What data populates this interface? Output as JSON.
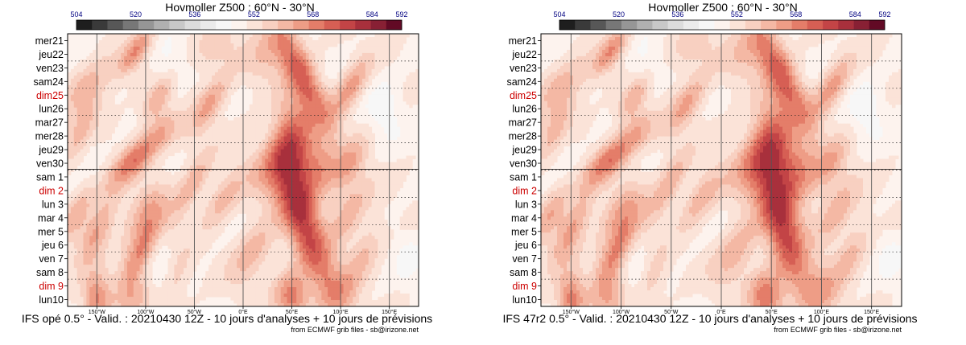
{
  "colors": {
    "scale": [
      "#1e1e1e",
      "#3a3a3a",
      "#575757",
      "#777777",
      "#969696",
      "#b0b0b0",
      "#c8c8c8",
      "#dcdcdc",
      "#ebebeb",
      "#f7f7f7",
      "#fdf3ee",
      "#fbe3d8",
      "#f8d0c1",
      "#f4b8a4",
      "#ee9d86",
      "#e47d69",
      "#d65f54",
      "#c34446",
      "#a8303c",
      "#882034",
      "#620a25"
    ],
    "title": "#000080",
    "tick": "#000080",
    "weekend": "#cc0000",
    "label": "#000000"
  },
  "panels": [
    {
      "chart_data": {
        "type": "heatmap",
        "title": "Hovmoller Z500 : 60°N - 30°N",
        "colorbar_ticks": [
          "504",
          "520",
          "536",
          "552",
          "568",
          "584",
          "592"
        ],
        "colorbar_range": [
          504,
          592
        ],
        "rows": [
          "mer21",
          "jeu22",
          "ven23",
          "sam24",
          "dim25",
          "lun26",
          "mar27",
          "mer28",
          "jeu29",
          "ven30",
          "sam 1",
          "dim 2",
          "lun 3",
          "mar 4",
          "mer 5",
          "jeu 6",
          "ven 7",
          "sam 8",
          "dim 9",
          "lun10"
        ],
        "weekend_rows": [
          4,
          11,
          18
        ],
        "x_ticks": [
          "150°W",
          "100°W",
          "50°W",
          "0°E",
          "50°E",
          "100°E",
          "150°E"
        ],
        "x_tick_values": [
          -150,
          -100,
          -50,
          0,
          50,
          100,
          150
        ],
        "x_range": [
          -180,
          180
        ],
        "forecast_start_row": 10,
        "caption": "IFS opé 0.5° - Valid. : 20210430 12Z - 10 jours d'analyses + 10 jours de prévisions",
        "source": "from ECMWF grib files - sb@irizone.net",
        "blobs": [
          {
            "lon": -110,
            "day": 0.8,
            "amp": 4.2,
            "slon": 9,
            "sday": 1.3,
            "drift": -8
          },
          {
            "lon": -30,
            "day": 0.5,
            "amp": 2.2,
            "slon": 14,
            "sday": 1.2,
            "drift": -6
          },
          {
            "lon": 25,
            "day": 1.0,
            "amp": 2.2,
            "slon": 16,
            "sday": 1.5,
            "drift": -5
          },
          {
            "lon": 60,
            "day": 2.5,
            "amp": 5.3,
            "slon": 12,
            "sday": 2.8,
            "drift": 6
          },
          {
            "lon": 110,
            "day": 3.5,
            "amp": 3.6,
            "slon": 10,
            "sday": 1.6,
            "drift": -6
          },
          {
            "lon": -160,
            "day": 3.5,
            "amp": 2.6,
            "slon": 14,
            "sday": 1.5,
            "drift": -6
          },
          {
            "lon": -85,
            "day": 4.0,
            "amp": 3.2,
            "slon": 9,
            "sday": 1.3,
            "drift": -7
          },
          {
            "lon": -35,
            "day": 4.8,
            "amp": 3.4,
            "slon": 10,
            "sday": 1.6,
            "drift": -7
          },
          {
            "lon": 50,
            "day": 6.5,
            "amp": 3.6,
            "slon": 14,
            "sday": 2.0,
            "drift": 0
          },
          {
            "lon": -110,
            "day": 8.6,
            "amp": 4.6,
            "slon": 13,
            "sday": 1.5,
            "drift": -10
          },
          {
            "lon": -165,
            "day": 6.5,
            "amp": 3.2,
            "slon": 10,
            "sday": 1.5,
            "drift": -5
          },
          {
            "lon": -80,
            "day": 6.5,
            "amp": 1.6,
            "slon": 12,
            "sday": 1.2,
            "drift": 0
          },
          {
            "lon": 40,
            "day": 9.0,
            "amp": 4.2,
            "slon": 20,
            "sday": 1.8,
            "drift": -4
          },
          {
            "lon": 80,
            "day": 9.5,
            "amp": 3.2,
            "slon": 14,
            "sday": 1.5,
            "drift": 0
          },
          {
            "lon": 110,
            "day": 9.0,
            "amp": 2.6,
            "slon": 10,
            "sday": 1.4,
            "drift": -5
          },
          {
            "lon": -55,
            "day": 11.0,
            "amp": 3.6,
            "slon": 10,
            "sday": 1.8,
            "drift": -6
          },
          {
            "lon": -20,
            "day": 11.5,
            "amp": 2.6,
            "slon": 11,
            "sday": 1.5,
            "drift": -6
          },
          {
            "lon": 55,
            "day": 11.5,
            "amp": 4.2,
            "slon": 14,
            "sday": 2.2,
            "drift": 2
          },
          {
            "lon": 110,
            "day": 12.5,
            "amp": 2.6,
            "slon": 12,
            "sday": 1.8,
            "drift": -5
          },
          {
            "lon": -100,
            "day": 12.5,
            "amp": 2.6,
            "slon": 14,
            "sday": 1.6,
            "drift": -5
          },
          {
            "lon": -150,
            "day": 14.0,
            "amp": 3.6,
            "slon": 10,
            "sday": 1.8,
            "drift": -6
          },
          {
            "lon": -105,
            "day": 15.5,
            "amp": 4.6,
            "slon": 10,
            "sday": 1.8,
            "drift": -6
          },
          {
            "lon": 70,
            "day": 15.0,
            "amp": 4.8,
            "slon": 13,
            "sday": 3.0,
            "drift": 4
          },
          {
            "lon": 10,
            "day": 15.5,
            "amp": 2.6,
            "slon": 14,
            "sday": 1.8,
            "drift": -5
          },
          {
            "lon": 125,
            "day": 15.5,
            "amp": 2.2,
            "slon": 10,
            "sday": 1.6,
            "drift": -5
          },
          {
            "lon": -170,
            "day": 12.5,
            "amp": 2.6,
            "slon": 9,
            "sday": 1.5,
            "drift": -5
          },
          {
            "lon": -70,
            "day": 17.5,
            "amp": 2.2,
            "slon": 10,
            "sday": 1.5,
            "drift": -5
          },
          {
            "lon": 50,
            "day": 18.8,
            "amp": 4.8,
            "slon": 12,
            "sday": 1.3,
            "drift": 0
          },
          {
            "lon": -150,
            "day": 19.0,
            "amp": 4.6,
            "slon": 10,
            "sday": 1.3,
            "drift": 0
          },
          {
            "lon": 100,
            "day": 18.5,
            "amp": 2.6,
            "slon": 14,
            "sday": 1.5,
            "drift": 0
          },
          {
            "lon": -110,
            "day": 19.0,
            "amp": 2.2,
            "slon": 12,
            "sday": 1.2,
            "drift": 0
          }
        ],
        "dips": [
          {
            "lon": -75,
            "day": 2.0,
            "amp": 1.5,
            "slon": 12,
            "sday": 1.5
          },
          {
            "lon": 145,
            "day": 5.0,
            "amp": 1.5,
            "slon": 12,
            "sday": 1.5
          },
          {
            "lon": -160,
            "day": 7.0,
            "amp": 1.2,
            "slon": 10,
            "sday": 1.5
          },
          {
            "lon": -60,
            "day": 11.5,
            "amp": 1.0,
            "slon": 12,
            "sday": 1.5
          },
          {
            "lon": -85,
            "day": 17.0,
            "amp": 1.2,
            "slon": 12,
            "sday": 1.5
          },
          {
            "lon": 170,
            "day": 16.0,
            "amp": 1.0,
            "slon": 10,
            "sday": 1.5
          }
        ]
      }
    },
    {
      "chart_data": {
        "type": "heatmap",
        "title": "Hovmoller Z500 : 60°N - 30°N",
        "colorbar_ticks": [
          "504",
          "520",
          "536",
          "552",
          "568",
          "584",
          "592"
        ],
        "colorbar_range": [
          504,
          592
        ],
        "rows": [
          "mer21",
          "jeu22",
          "ven23",
          "sam24",
          "dim25",
          "lun26",
          "mar27",
          "mer28",
          "jeu29",
          "ven30",
          "sam 1",
          "dim 2",
          "lun 3",
          "mar 4",
          "mer 5",
          "jeu 6",
          "ven 7",
          "sam 8",
          "dim 9",
          "lun10"
        ],
        "weekend_rows": [
          4,
          11,
          18
        ],
        "x_ticks": [
          "150°W",
          "100°W",
          "50°W",
          "0°E",
          "50°E",
          "100°E",
          "150°E"
        ],
        "x_tick_values": [
          -150,
          -100,
          -50,
          0,
          50,
          100,
          150
        ],
        "x_range": [
          -180,
          180
        ],
        "forecast_start_row": 10,
        "caption": "IFS 47r2 0.5° - Valid. : 20210430 12Z - 10 jours d'analyses + 10 jours de prévisions",
        "source": "from ECMWF grib files - sb@irizone.net",
        "blobs": [
          {
            "lon": -110,
            "day": 0.8,
            "amp": 4.2,
            "slon": 9,
            "sday": 1.3,
            "drift": -8
          },
          {
            "lon": -30,
            "day": 0.5,
            "amp": 2.2,
            "slon": 14,
            "sday": 1.2,
            "drift": -6
          },
          {
            "lon": 25,
            "day": 1.0,
            "amp": 2.2,
            "slon": 16,
            "sday": 1.5,
            "drift": -5
          },
          {
            "lon": 60,
            "day": 2.5,
            "amp": 5.3,
            "slon": 12,
            "sday": 2.8,
            "drift": 6
          },
          {
            "lon": 110,
            "day": 3.5,
            "amp": 3.6,
            "slon": 10,
            "sday": 1.6,
            "drift": -6
          },
          {
            "lon": -160,
            "day": 3.5,
            "amp": 2.6,
            "slon": 14,
            "sday": 1.5,
            "drift": -6
          },
          {
            "lon": -85,
            "day": 4.0,
            "amp": 3.2,
            "slon": 9,
            "sday": 1.3,
            "drift": -7
          },
          {
            "lon": -35,
            "day": 4.8,
            "amp": 3.4,
            "slon": 10,
            "sday": 1.6,
            "drift": -7
          },
          {
            "lon": 50,
            "day": 6.5,
            "amp": 3.6,
            "slon": 14,
            "sday": 2.0,
            "drift": 0
          },
          {
            "lon": -110,
            "day": 8.6,
            "amp": 4.6,
            "slon": 13,
            "sday": 1.5,
            "drift": -10
          },
          {
            "lon": -165,
            "day": 6.5,
            "amp": 3.2,
            "slon": 10,
            "sday": 1.5,
            "drift": -5
          },
          {
            "lon": -80,
            "day": 6.5,
            "amp": 1.6,
            "slon": 12,
            "sday": 1.2,
            "drift": 0
          },
          {
            "lon": 40,
            "day": 9.0,
            "amp": 4.2,
            "slon": 20,
            "sday": 1.8,
            "drift": -4
          },
          {
            "lon": 80,
            "day": 9.5,
            "amp": 3.2,
            "slon": 14,
            "sday": 1.5,
            "drift": 0
          },
          {
            "lon": 110,
            "day": 9.0,
            "amp": 2.6,
            "slon": 10,
            "sday": 1.4,
            "drift": -5
          },
          {
            "lon": -55,
            "day": 11.0,
            "amp": 3.8,
            "slon": 10,
            "sday": 1.8,
            "drift": -6
          },
          {
            "lon": -20,
            "day": 11.5,
            "amp": 2.8,
            "slon": 11,
            "sday": 1.5,
            "drift": -6
          },
          {
            "lon": 60,
            "day": 11.5,
            "amp": 4.4,
            "slon": 14,
            "sday": 2.2,
            "drift": 2
          },
          {
            "lon": 115,
            "day": 12.5,
            "amp": 2.8,
            "slon": 12,
            "sday": 1.8,
            "drift": -5
          },
          {
            "lon": -100,
            "day": 12.5,
            "amp": 2.8,
            "slon": 14,
            "sday": 1.6,
            "drift": -5
          },
          {
            "lon": -150,
            "day": 14.0,
            "amp": 3.8,
            "slon": 10,
            "sday": 1.8,
            "drift": -6
          },
          {
            "lon": -105,
            "day": 15.6,
            "amp": 4.8,
            "slon": 10,
            "sday": 1.8,
            "drift": -6
          },
          {
            "lon": 65,
            "day": 15.0,
            "amp": 4.8,
            "slon": 13,
            "sday": 3.0,
            "drift": 4
          },
          {
            "lon": 15,
            "day": 15.5,
            "amp": 2.8,
            "slon": 14,
            "sday": 1.8,
            "drift": -5
          },
          {
            "lon": 130,
            "day": 15.5,
            "amp": 2.4,
            "slon": 10,
            "sday": 1.6,
            "drift": -5
          },
          {
            "lon": -170,
            "day": 12.5,
            "amp": 2.8,
            "slon": 9,
            "sday": 1.5,
            "drift": -5
          },
          {
            "lon": -70,
            "day": 17.5,
            "amp": 2.4,
            "slon": 10,
            "sday": 1.5,
            "drift": -5
          },
          {
            "lon": 45,
            "day": 18.8,
            "amp": 5.0,
            "slon": 12,
            "sday": 1.3,
            "drift": 0
          },
          {
            "lon": -150,
            "day": 19.0,
            "amp": 4.8,
            "slon": 10,
            "sday": 1.3,
            "drift": 0
          },
          {
            "lon": 100,
            "day": 18.5,
            "amp": 2.8,
            "slon": 14,
            "sday": 1.5,
            "drift": 0
          },
          {
            "lon": -110,
            "day": 19.0,
            "amp": 2.4,
            "slon": 12,
            "sday": 1.2,
            "drift": 0
          }
        ],
        "dips": [
          {
            "lon": -75,
            "day": 2.0,
            "amp": 1.5,
            "slon": 12,
            "sday": 1.5
          },
          {
            "lon": 145,
            "day": 5.0,
            "amp": 1.5,
            "slon": 12,
            "sday": 1.5
          },
          {
            "lon": -160,
            "day": 7.0,
            "amp": 1.2,
            "slon": 10,
            "sday": 1.5
          },
          {
            "lon": -60,
            "day": 11.5,
            "amp": 1.0,
            "slon": 12,
            "sday": 1.5
          },
          {
            "lon": -85,
            "day": 17.0,
            "amp": 1.2,
            "slon": 12,
            "sday": 1.5
          },
          {
            "lon": 170,
            "day": 16.0,
            "amp": 1.0,
            "slon": 10,
            "sday": 1.5
          }
        ]
      }
    }
  ]
}
